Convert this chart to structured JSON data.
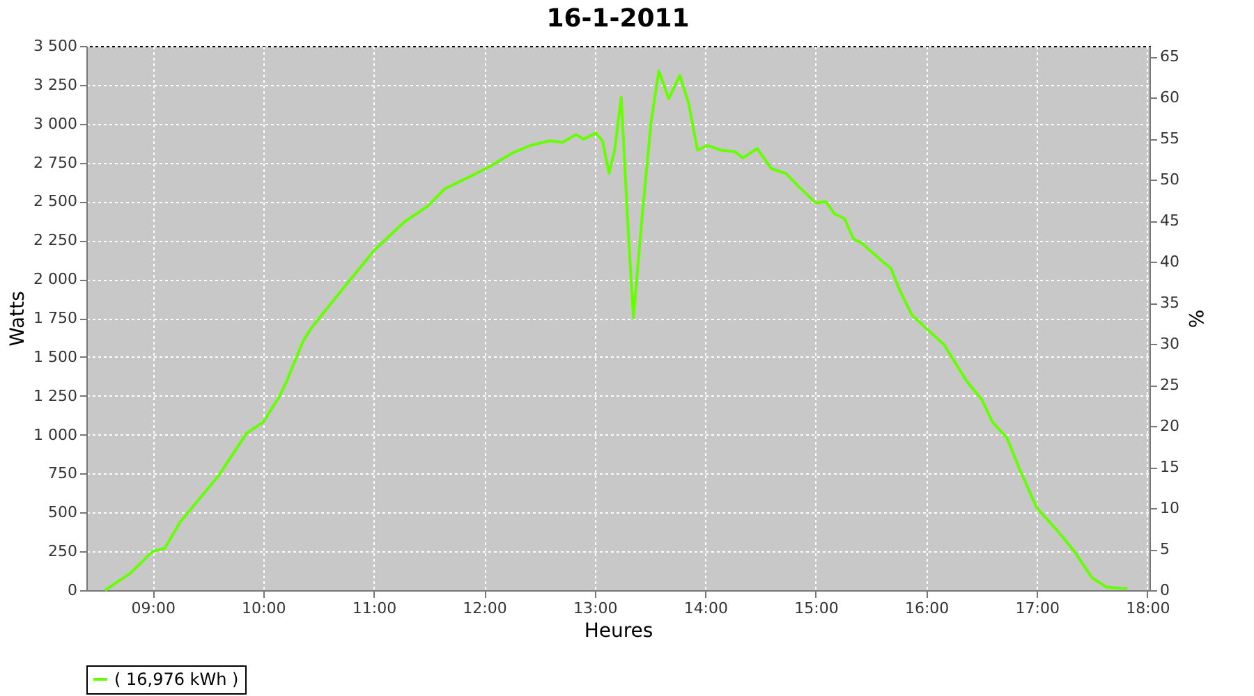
{
  "chart_data": {
    "type": "line",
    "title": "16-1-2011",
    "xlabel": "Heures",
    "ylabel": "Watts",
    "y2label": "%",
    "xlim": [
      8.4,
      18.02
    ],
    "xticks": [
      {
        "value": 9,
        "label": "09:00"
      },
      {
        "value": 10,
        "label": "10:00"
      },
      {
        "value": 11,
        "label": "11:00"
      },
      {
        "value": 12,
        "label": "12:00"
      },
      {
        "value": 13,
        "label": "13:00"
      },
      {
        "value": 14,
        "label": "14:00"
      },
      {
        "value": 15,
        "label": "15:00"
      },
      {
        "value": 16,
        "label": "16:00"
      },
      {
        "value": 17,
        "label": "17:00"
      },
      {
        "value": 18,
        "label": "18:00"
      }
    ],
    "ylim": [
      0,
      3500
    ],
    "yticks": [
      0,
      250,
      500,
      750,
      {
        "value": 1000,
        "label": "1 000"
      },
      {
        "value": 1250,
        "label": "1 250"
      },
      {
        "value": 1500,
        "label": "1 500"
      },
      {
        "value": 1750,
        "label": "1 750"
      },
      {
        "value": 2000,
        "label": "2 000"
      },
      {
        "value": 2250,
        "label": "2 250"
      },
      {
        "value": 2500,
        "label": "2 500"
      },
      {
        "value": 2750,
        "label": "2 750"
      },
      {
        "value": 3000,
        "label": "3 000"
      },
      {
        "value": 3250,
        "label": "3 250"
      },
      {
        "value": 3500,
        "label": "3 500"
      }
    ],
    "y2lim": [
      0,
      66.3
    ],
    "y2ticks": [
      0,
      5,
      10,
      15,
      20,
      25,
      30,
      35,
      40,
      45,
      50,
      55,
      60,
      65
    ],
    "grid": true,
    "legend": "bottom",
    "marker": "none",
    "line_style": "solid",
    "series": [
      {
        "name": "( 16,976 kWh )",
        "color": "#66ff00",
        "x": [
          8.57,
          8.8,
          9.0,
          9.11,
          9.25,
          9.6,
          9.85,
          10.0,
          10.15,
          10.21,
          10.36,
          10.44,
          10.7,
          11.01,
          11.28,
          11.49,
          11.64,
          11.87,
          12.04,
          12.25,
          12.42,
          12.59,
          12.71,
          12.83,
          12.9,
          13.01,
          13.07,
          13.13,
          13.18,
          13.24,
          13.3,
          13.35,
          13.43,
          13.51,
          13.58,
          13.67,
          13.77,
          13.85,
          13.93,
          14.02,
          14.14,
          14.27,
          14.34,
          14.47,
          14.6,
          14.73,
          14.84,
          15.0,
          15.09,
          15.17,
          15.26,
          15.34,
          15.42,
          15.61,
          15.68,
          15.76,
          15.87,
          15.99,
          16.16,
          16.37,
          16.5,
          16.6,
          16.73,
          16.85,
          17.0,
          17.19,
          17.34,
          17.5,
          17.63,
          17.82
        ],
        "values": [
          0,
          110,
          250,
          270,
          440,
          740,
          1010,
          1080,
          1250,
          1340,
          1600,
          1690,
          1920,
          2190,
          2370,
          2470,
          2580,
          2660,
          2720,
          2810,
          2860,
          2890,
          2880,
          2930,
          2900,
          2940,
          2890,
          2680,
          2830,
          3170,
          2350,
          1750,
          2410,
          3010,
          3340,
          3160,
          3310,
          3130,
          2830,
          2860,
          2830,
          2820,
          2780,
          2840,
          2710,
          2680,
          2600,
          2490,
          2500,
          2420,
          2390,
          2260,
          2230,
          2110,
          2070,
          1930,
          1770,
          1690,
          1580,
          1340,
          1230,
          1080,
          980,
          770,
          530,
          380,
          250,
          80,
          20,
          10
        ]
      }
    ]
  }
}
